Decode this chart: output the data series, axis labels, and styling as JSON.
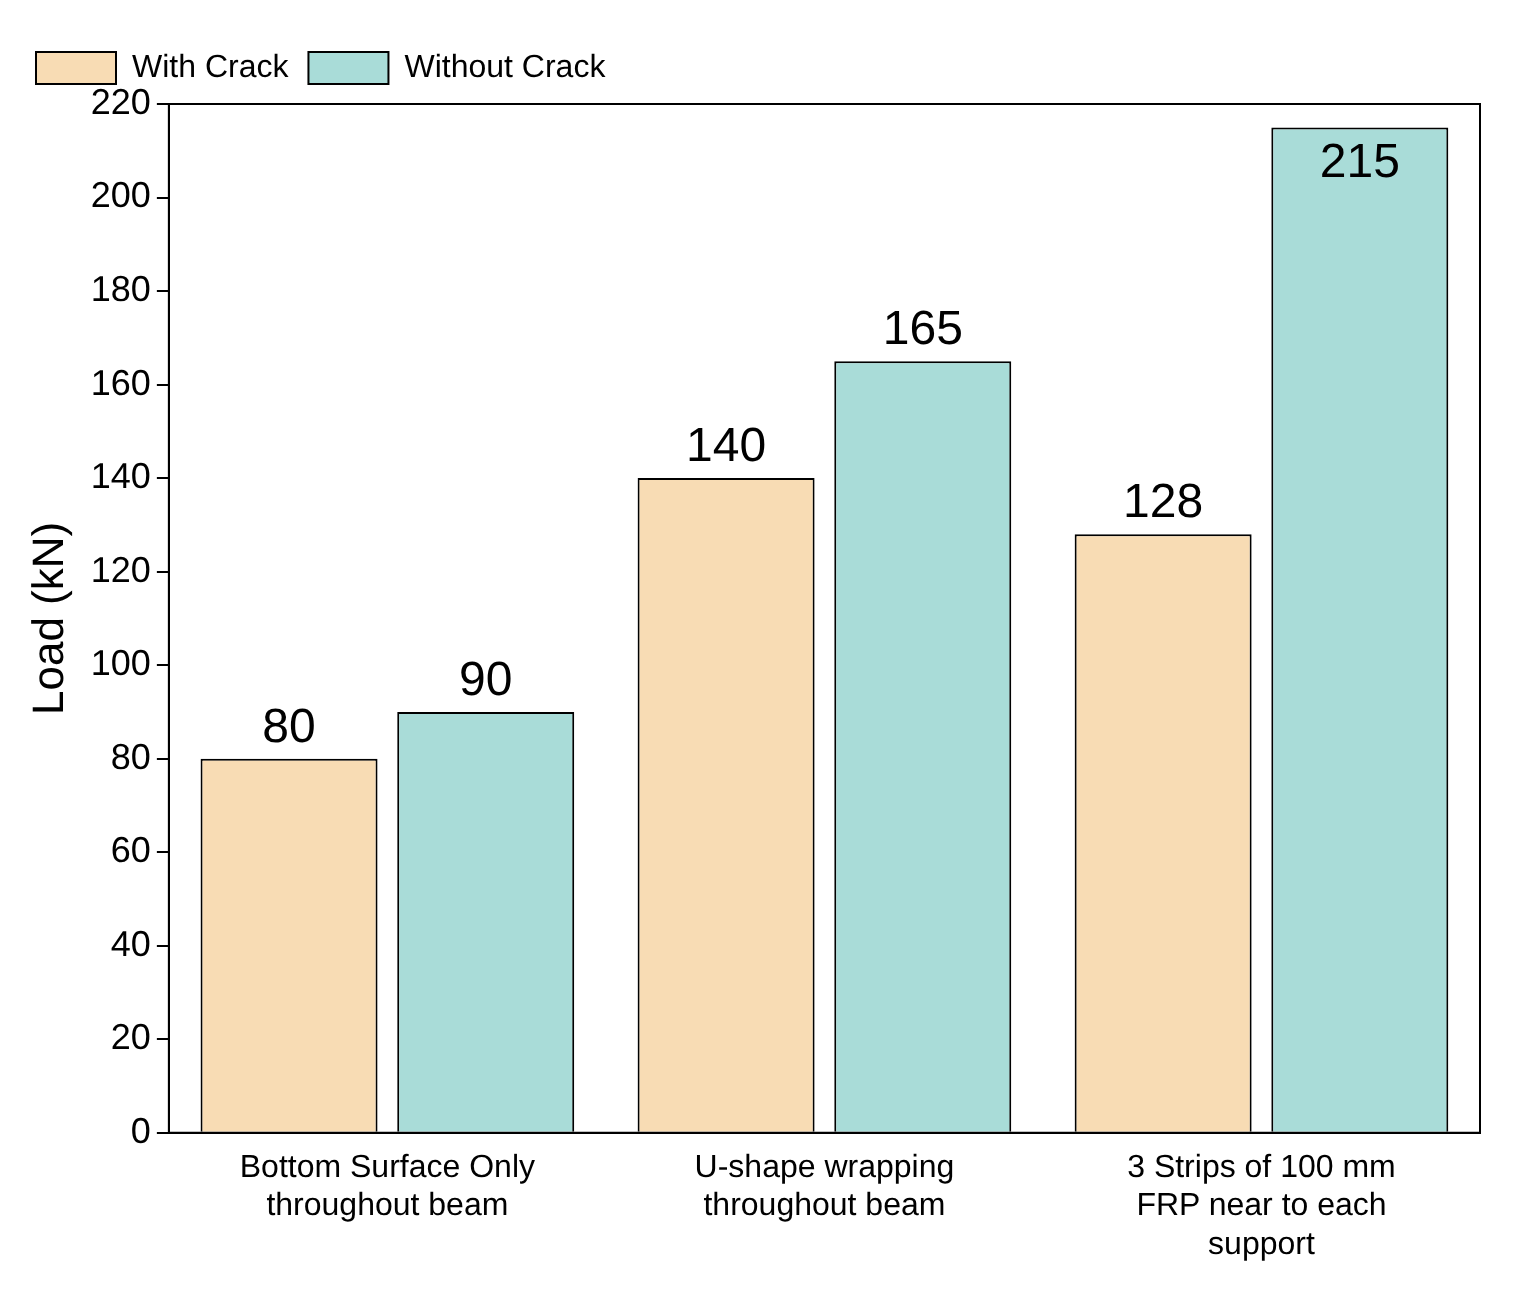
{
  "chart_data": {
    "type": "bar",
    "ylabel": "Load (kN)",
    "categories": [
      "Bottom Surface Only throughout beam",
      "U-shape wrapping throughout beam",
      "3 Strips of 100 mm FRP near to each support"
    ],
    "series": [
      {
        "name": "With Crack",
        "color": "#f8dcb4",
        "values": [
          80,
          140,
          128
        ]
      },
      {
        "name": "Without Crack",
        "color": "#a9dcd8",
        "values": [
          90,
          165,
          215
        ]
      }
    ],
    "ylim": [
      0,
      220
    ],
    "yticks": [
      0,
      20,
      40,
      60,
      80,
      100,
      120,
      140,
      160,
      180,
      200,
      220
    ],
    "grid": false,
    "legend": "top left",
    "data_labels": true
  }
}
